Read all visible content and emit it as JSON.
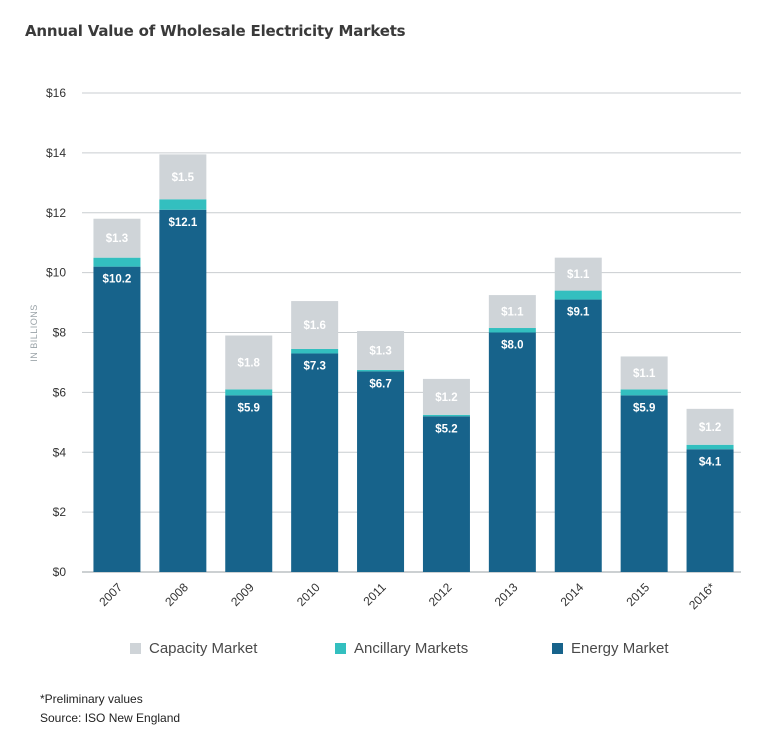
{
  "chart_data": {
    "type": "bar",
    "stacked": true,
    "title": "Annual Value of Wholesale Electricity Markets",
    "ylabel": "IN BILLIONS",
    "xlabel": "",
    "ylim": [
      0,
      16
    ],
    "yticks": [
      0,
      2,
      4,
      6,
      8,
      10,
      12,
      14,
      16
    ],
    "ytick_labels": [
      "$0",
      "$2",
      "$4",
      "$6",
      "$8",
      "$10",
      "$12",
      "$14",
      "$16"
    ],
    "grid": true,
    "legend_position": "bottom",
    "categories": [
      "2007",
      "2008",
      "2009",
      "2010",
      "2011",
      "2012",
      "2013",
      "2014",
      "2015",
      "2016*"
    ],
    "series": [
      {
        "name": "Energy Market",
        "color": "#17638b",
        "values": [
          10.2,
          12.1,
          5.9,
          7.3,
          6.7,
          5.2,
          8.0,
          9.1,
          5.9,
          4.1
        ],
        "labels": [
          "$10.2",
          "$12.1",
          "$5.9",
          "$7.3",
          "$6.7",
          "$5.2",
          "$8.0",
          "$9.1",
          "$5.9",
          "$4.1"
        ]
      },
      {
        "name": "Ancillary Markets",
        "color": "#33bfbf",
        "values": [
          0.3,
          0.35,
          0.2,
          0.15,
          0.05,
          0.05,
          0.15,
          0.3,
          0.2,
          0.15
        ],
        "labels": []
      },
      {
        "name": "Capacity Market",
        "color": "#cfd4d8",
        "values": [
          1.3,
          1.5,
          1.8,
          1.6,
          1.3,
          1.2,
          1.1,
          1.1,
          1.1,
          1.2
        ],
        "labels": [
          "$1.3",
          "$1.5",
          "$1.8",
          "$1.6",
          "$1.3",
          "$1.2",
          "$1.1",
          "$1.1",
          "$1.1",
          "$1.2"
        ]
      }
    ],
    "legend_order": [
      "Capacity Market",
      "Ancillary Markets",
      "Energy Market"
    ]
  },
  "footnotes": {
    "preliminary": "*Preliminary  values",
    "source": "Source:  ISO New England"
  }
}
